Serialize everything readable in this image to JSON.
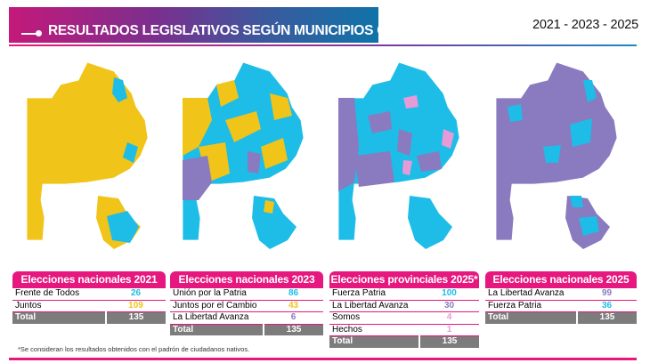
{
  "header": {
    "title": "RESULTADOS LEGISLATIVOS SEGÚN MUNICIPIOS GANADOS",
    "years": "2021 - 2023 - 2025"
  },
  "colors": {
    "accent": "#e6177e",
    "fuerza_patria_union": "#1dbde8",
    "juntos": "#f0c419",
    "libertad_avanza": "#8a7abf",
    "somos": "#e79ad8",
    "total_bg": "#7c7c7c"
  },
  "maps": [
    {
      "label": "Mapa 2021",
      "dominant": "Juntos"
    },
    {
      "label": "Mapa 2023",
      "dominant": "Mixed"
    },
    {
      "label": "Mapa provincial 2025",
      "dominant": "Fuerza Patria"
    },
    {
      "label": "Mapa nacional 2025",
      "dominant": "La Libertad Avanza"
    }
  ],
  "panels": [
    {
      "title": "Elecciones nacionales 2021",
      "rows": [
        {
          "name": "Frente de Todos",
          "value": "26",
          "color": "#1dbde8"
        },
        {
          "name": "Juntos",
          "value": "109",
          "color": "#f0c419"
        }
      ],
      "total_label": "Total",
      "total_value": "135"
    },
    {
      "title": "Elecciones nacionales 2023",
      "rows": [
        {
          "name": "Unión por la Patria",
          "value": "86",
          "color": "#1dbde8"
        },
        {
          "name": "Juntos por el Cambio",
          "value": "43",
          "color": "#f0c419"
        },
        {
          "name": "La Libertad Avanza",
          "value": "6",
          "color": "#8a7abf"
        }
      ],
      "total_label": "Total",
      "total_value": "135"
    },
    {
      "title": "Elecciones provinciales 2025*",
      "rows": [
        {
          "name": "Fuerza Patria",
          "value": "100",
          "color": "#1dbde8"
        },
        {
          "name": "La Libertad Avanza",
          "value": "30",
          "color": "#8a7abf"
        },
        {
          "name": "Somos",
          "value": "4",
          "color": "#e79ad8"
        },
        {
          "name": "Hechos",
          "value": "1",
          "color": "#e79ad8"
        }
      ],
      "total_label": "Total",
      "total_value": "135"
    },
    {
      "title": "Elecciones nacionales 2025",
      "rows": [
        {
          "name": "La Libertad Avanza",
          "value": "99",
          "color": "#8a7abf"
        },
        {
          "name": "Fuerza Patria",
          "value": "36",
          "color": "#1dbde8"
        }
      ],
      "total_label": "Total",
      "total_value": "135"
    }
  ],
  "footnote": "*Se consideran los resultados obtenidos con el padrón de ciudadanos nativos."
}
